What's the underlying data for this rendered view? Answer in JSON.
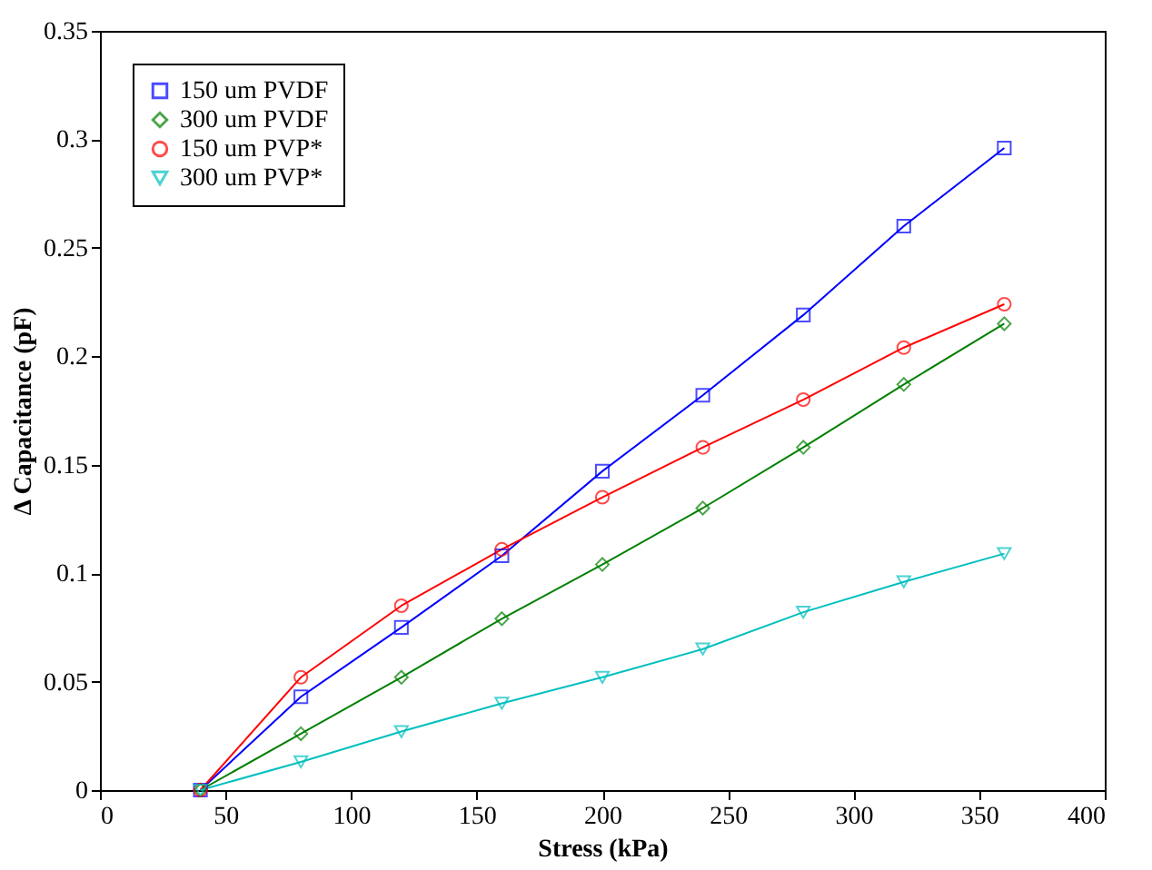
{
  "chart_data": {
    "type": "line",
    "xlabel": "Stress (kPa)",
    "ylabel": "Δ Capacitance (pF)",
    "x": [
      40,
      80,
      120,
      160,
      200,
      240,
      280,
      320,
      360
    ],
    "series": [
      {
        "name": "150 um PVDF",
        "color": "#0000ff",
        "marker": "square",
        "values": [
          0,
          0.043,
          0.075,
          0.108,
          0.147,
          0.182,
          0.219,
          0.26,
          0.296
        ]
      },
      {
        "name": "300 um PVDF",
        "color": "#008000",
        "marker": "diamond",
        "values": [
          0,
          0.026,
          0.052,
          0.079,
          0.104,
          0.13,
          0.158,
          0.187,
          0.215
        ]
      },
      {
        "name": "150 um PVP*",
        "color": "#ff0000",
        "marker": "circle",
        "values": [
          0,
          0.052,
          0.085,
          0.111,
          0.135,
          0.158,
          0.18,
          0.204,
          0.224
        ]
      },
      {
        "name": "300 um PVP*",
        "color": "#00bfbf",
        "marker": "triangle",
        "values": [
          0,
          0.013,
          0.027,
          0.04,
          0.052,
          0.065,
          0.082,
          0.096,
          0.109
        ]
      }
    ],
    "xlim": [
      0,
      400
    ],
    "xticks": [
      0,
      50,
      100,
      150,
      200,
      250,
      300,
      350,
      400
    ],
    "ylim": [
      0,
      0.35
    ],
    "yticks": [
      0,
      0.05,
      0.1,
      0.15,
      0.2,
      0.25,
      0.3,
      0.35
    ],
    "grid": false,
    "legend": "top left",
    "line_style": "solid"
  }
}
